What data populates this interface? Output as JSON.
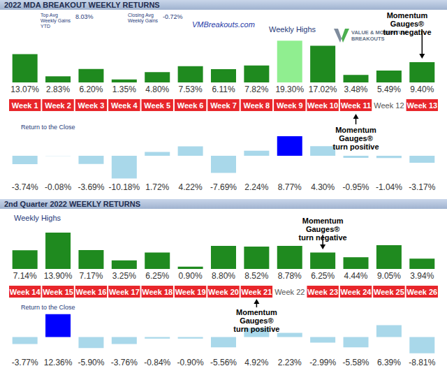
{
  "headers": [
    "2022 MDA BREAKOUT WEEKLY RETURNS",
    "2nd Quarter 2022 WEEKLY RETURNS"
  ],
  "stats": [
    {
      "label": "Top Avg Weekly Gains YTD",
      "value": "8.03%"
    },
    {
      "label": "Closing Avg Weekly Gains",
      "value": "-0.72%"
    }
  ],
  "website": "VMBreakouts.com",
  "logo": "VALUE & MOMENTUM BREAKOUTS",
  "chart_data": [
    {
      "type": "bar",
      "title": "Weekly Highs",
      "categories": [
        "Week 1",
        "Week 2",
        "Week 3",
        "Week 4",
        "Week 5",
        "Week 6",
        "Week 7",
        "Week 8",
        "Week 9",
        "Week 10",
        "Week 11",
        "Week 12",
        "Week 13"
      ],
      "category_colors": [
        "#e8262b",
        "#e8262b",
        "#e8262b",
        "#e8262b",
        "#e8262b",
        "#e8262b",
        "#e8262b",
        "#e8262b",
        "#e8262b",
        "#e8262b",
        "#e8262b",
        "#ffffff",
        "#e8262b"
      ],
      "values": [
        13.07,
        2.83,
        6.2,
        1.35,
        4.8,
        7.53,
        6.11,
        7.82,
        19.3,
        17.02,
        3.48,
        5.49,
        9.4
      ],
      "value_labels": [
        "13.07%",
        "2.83%",
        "6.20%",
        "1.35%",
        "4.80%",
        "7.53%",
        "6.11%",
        "7.82%",
        "19.30%",
        "17.02%",
        "3.48%",
        "5.49%",
        "9.40%"
      ],
      "colors": [
        "#1f8a1f",
        "#1f8a1f",
        "#1f8a1f",
        "#1f8a1f",
        "#1f8a1f",
        "#1f8a1f",
        "#1f8a1f",
        "#1f8a1f",
        "#90ee90",
        "#1f8a1f",
        "#1f8a1f",
        "#1f8a1f",
        "#1f8a1f"
      ],
      "ylim": [
        0,
        22
      ],
      "data_labels": true,
      "tick_labels": "x",
      "annotations": [
        {
          "text": [
            "Momentum Gauges®",
            "turn negative"
          ],
          "category": "Week 13"
        },
        {
          "text": [
            "Momentum Gauges®",
            "turn positive"
          ],
          "category": "Week 11"
        }
      ]
    },
    {
      "type": "bar",
      "title": "Return to the Close",
      "categories": [
        null,
        null,
        null,
        null,
        null,
        null,
        null,
        null,
        null,
        null,
        null,
        null,
        null
      ],
      "values": [
        -3.74,
        -0.08,
        -3.69,
        -10.18,
        1.72,
        4.22,
        -7.69,
        2.24,
        8.77,
        4.3,
        -0.95,
        -1.04,
        -3.17
      ],
      "value_labels": [
        "-3.74%",
        "-0.08%",
        "-3.69%",
        "-10.18%",
        "1.72%",
        "4.22%",
        "-7.69%",
        "2.24%",
        "8.77%",
        "4.30%",
        "-0.95%",
        "-1.04%",
        "-3.17%"
      ],
      "colors": [
        "#a9d8ea",
        "#a9d8ea",
        "#a9d8ea",
        "#a9d8ea",
        "#a9d8ea",
        "#a9d8ea",
        "#a9d8ea",
        "#a9d8ea",
        "#0000ff",
        "#a9d8ea",
        "#a9d8ea",
        "#a9d8ea",
        "#a9d8ea"
      ],
      "ylim": [
        -11,
        11
      ],
      "data_labels": true,
      "tick_labels": false
    },
    {
      "type": "bar",
      "title": "Weekly Highs",
      "categories": [
        "Week 14",
        "Week 15",
        "Week 16",
        "Week 17",
        "Week 18",
        "Week 19",
        "Week 20",
        "Week 21",
        "Week 22",
        "Week 23",
        "Week 24",
        "Week 25",
        "Week 26"
      ],
      "category_colors": [
        "#e8262b",
        "#e8262b",
        "#e8262b",
        "#e8262b",
        "#e8262b",
        "#e8262b",
        "#e8262b",
        "#e8262b",
        "#ffffff",
        "#e8262b",
        "#e8262b",
        "#e8262b",
        "#e8262b"
      ],
      "values": [
        7.14,
        13.9,
        7.17,
        3.25,
        6.25,
        0.9,
        8.8,
        8.52,
        8.78,
        6.25,
        4.44,
        9.05,
        3.94
      ],
      "value_labels": [
        "7.14%",
        "13.90%",
        "7.17%",
        "3.25%",
        "6.25%",
        "0.90%",
        "8.80%",
        "8.52%",
        "8.78%",
        "6.25%",
        "4.44%",
        "9.05%",
        "3.94%"
      ],
      "colors": [
        "#1f8a1f",
        "#1f8a1f",
        "#1f8a1f",
        "#1f8a1f",
        "#1f8a1f",
        "#1f8a1f",
        "#1f8a1f",
        "#1f8a1f",
        "#1f8a1f",
        "#1f8a1f",
        "#1f8a1f",
        "#1f8a1f",
        "#1f8a1f"
      ],
      "ylim": [
        0,
        16
      ],
      "data_labels": true,
      "tick_labels": "x",
      "annotations": [
        {
          "text": [
            "Momentum Gauges®",
            "turn negative"
          ],
          "category": "Week 23"
        },
        {
          "text": [
            "Momentum Gauges®",
            "turn positive"
          ],
          "category": "Week 21"
        }
      ]
    },
    {
      "type": "bar",
      "title": "Return to the Close",
      "categories": [
        null,
        null,
        null,
        null,
        null,
        null,
        null,
        null,
        null,
        null,
        null,
        null,
        null
      ],
      "values": [
        -3.77,
        12.36,
        -5.9,
        -3.76,
        -0.84,
        -0.9,
        -5.56,
        4.92,
        2.23,
        -2.99,
        -5.58,
        6.39,
        -8.81
      ],
      "value_labels": [
        "-3.77%",
        "12.36%",
        "-5.90%",
        "-3.76%",
        "-0.84%",
        "-0.90%",
        "-5.56%",
        "4.92%",
        "2.23%",
        "-2.99%",
        "-5.58%",
        "6.39%",
        "-8.81%"
      ],
      "colors": [
        "#a9d8ea",
        "#0000ff",
        "#a9d8ea",
        "#a9d8ea",
        "#a9d8ea",
        "#a9d8ea",
        "#a9d8ea",
        "#a9d8ea",
        "#a9d8ea",
        "#a9d8ea",
        "#a9d8ea",
        "#a9d8ea",
        "#a9d8ea"
      ],
      "ylim": [
        -10,
        13
      ],
      "data_labels": true,
      "tick_labels": false
    }
  ]
}
